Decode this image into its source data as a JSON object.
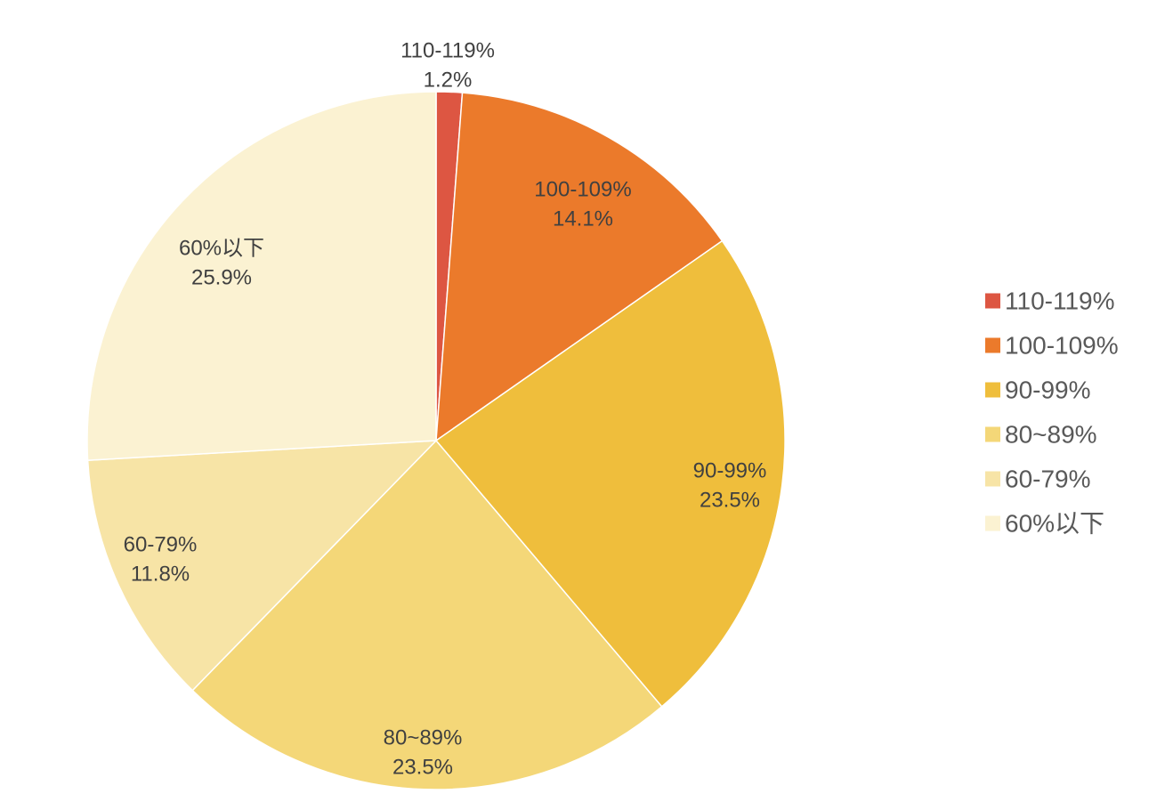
{
  "chart_data": {
    "type": "pie",
    "categories": [
      "110-119%",
      "100-109%",
      "90-99%",
      "80~89%",
      "60-79%",
      "60%以下"
    ],
    "values": [
      1.2,
      14.1,
      23.5,
      23.5,
      11.8,
      25.9
    ],
    "value_labels": [
      "1.2%",
      "14.1%",
      "23.5%",
      "23.5%",
      "11.8%",
      "25.9%"
    ],
    "colors": [
      "#dd5642",
      "#eb7a2b",
      "#efbe3c",
      "#f4d778",
      "#f7e4a6",
      "#fbf2d2"
    ],
    "legend_position": "right",
    "start_angle_deg": 0,
    "direction": "clockwise"
  }
}
